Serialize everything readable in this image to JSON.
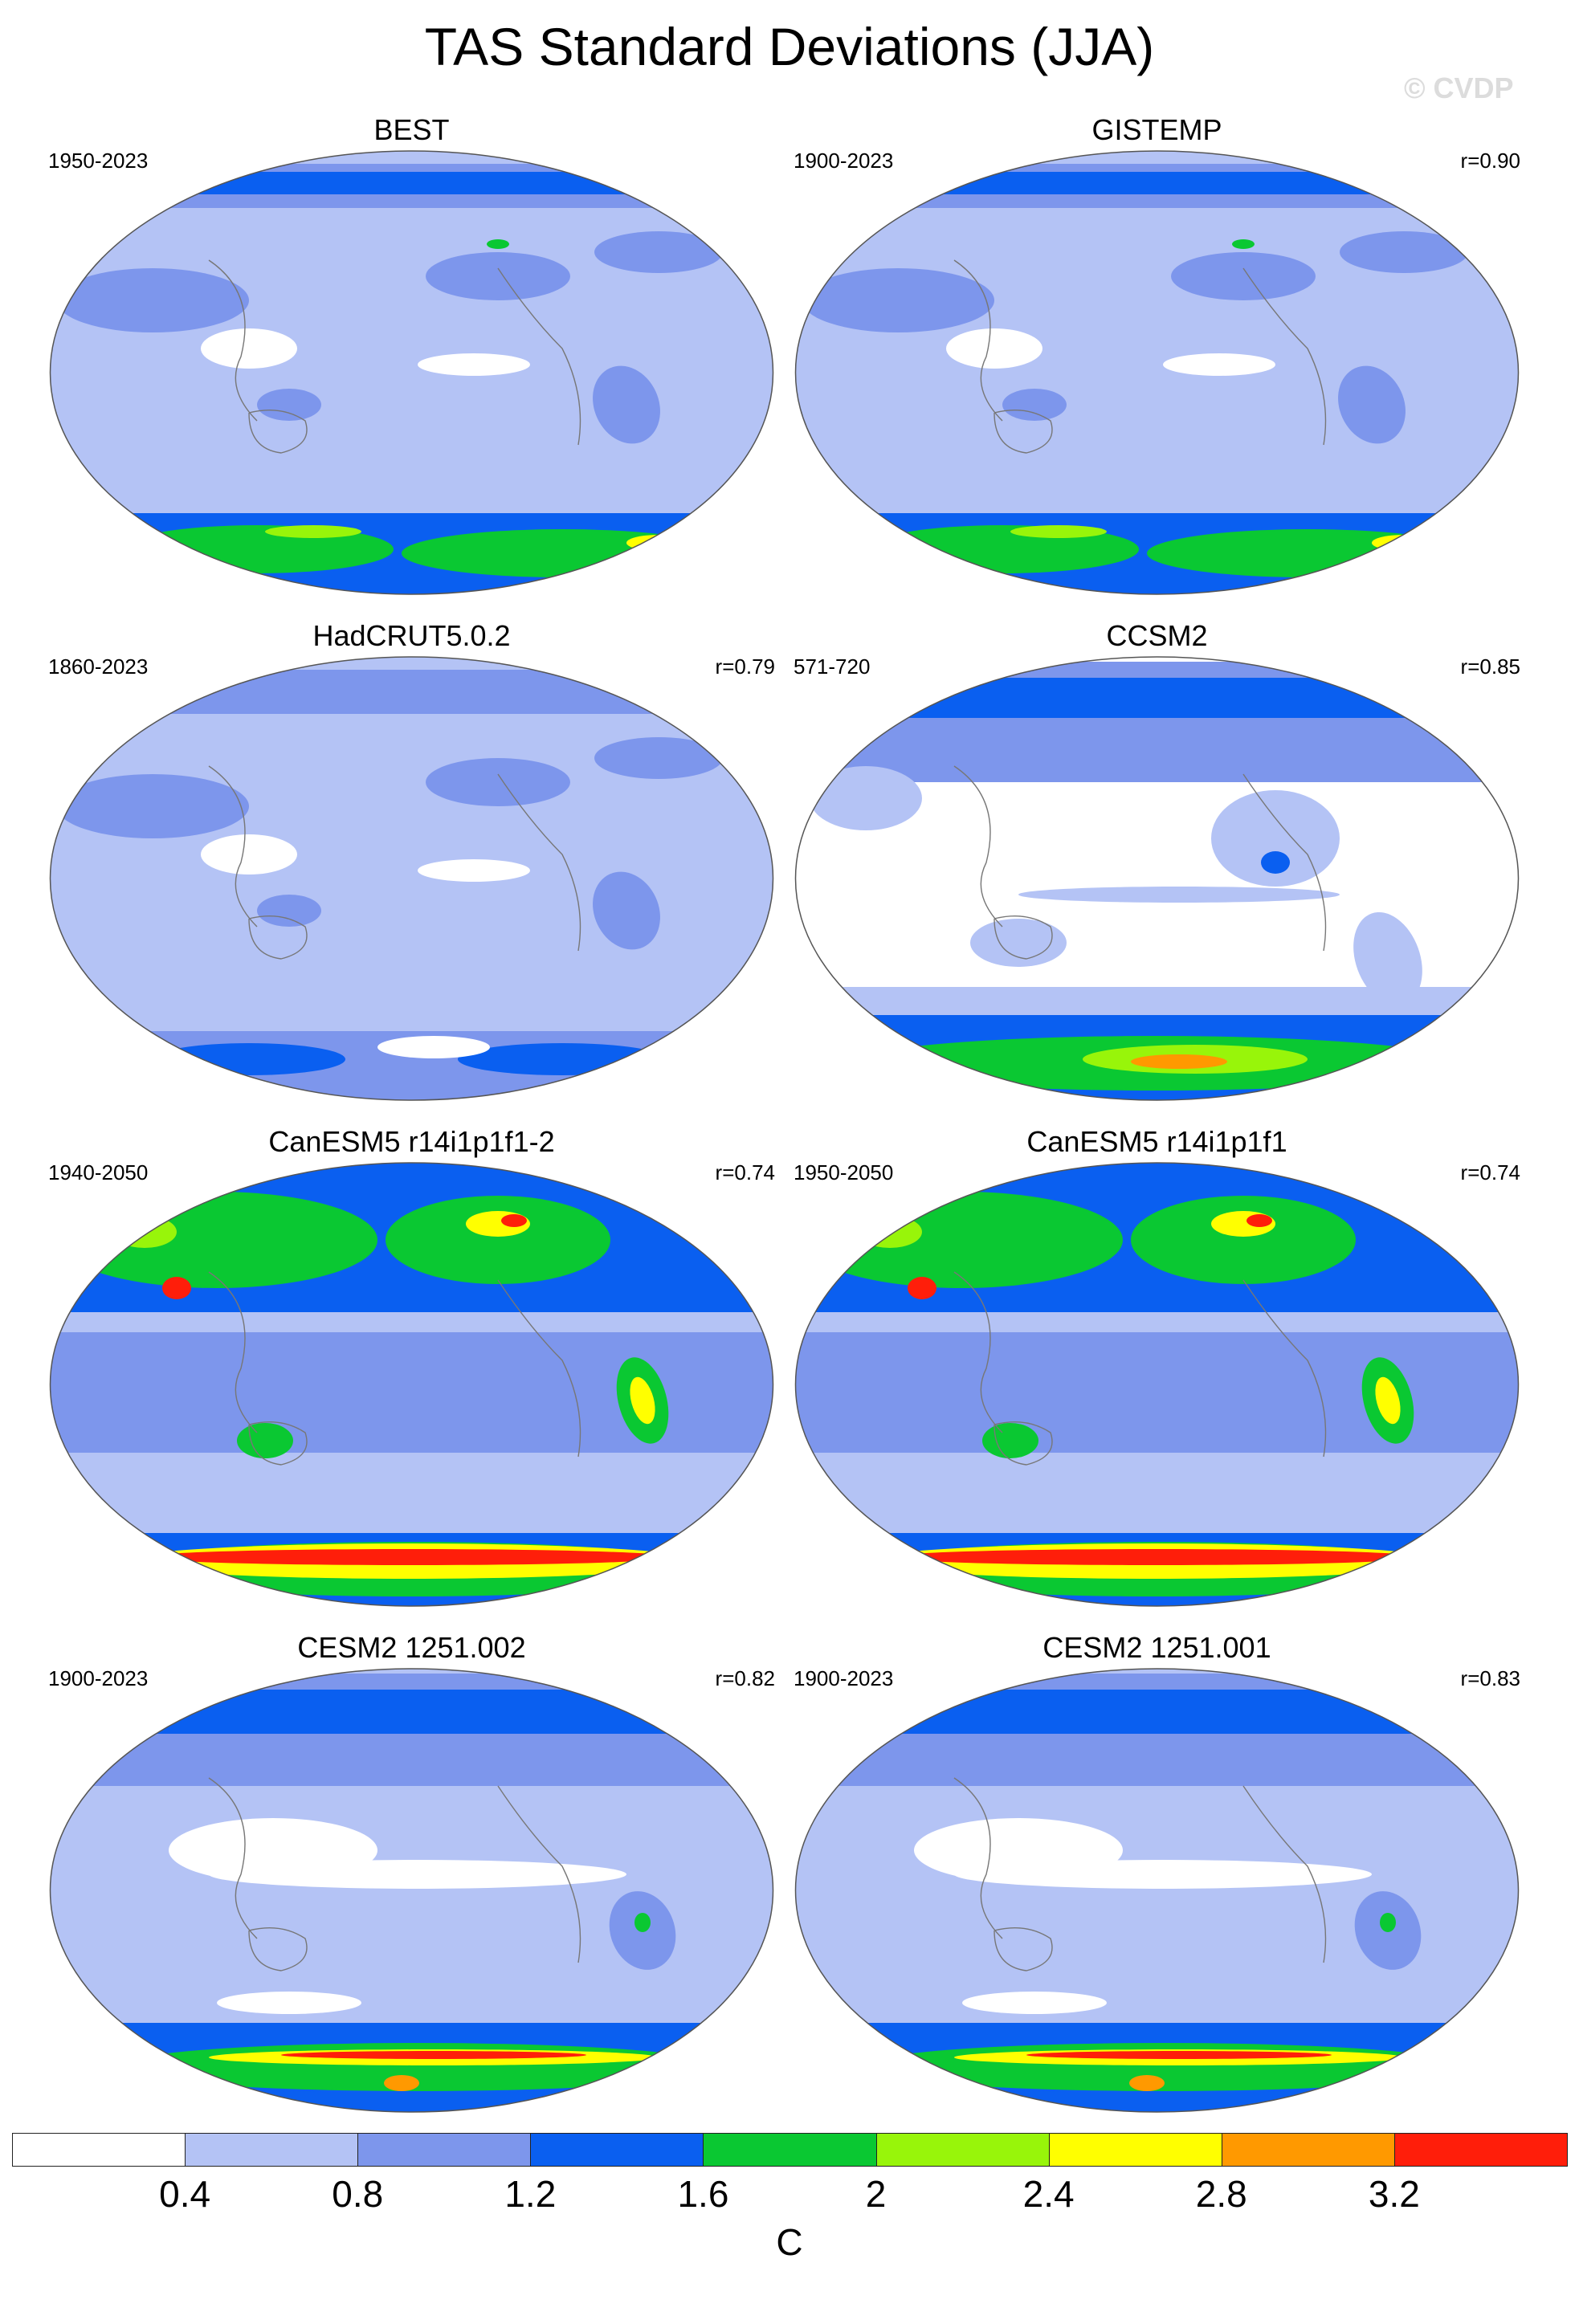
{
  "title": "TAS Standard Deviations (JJA)",
  "watermark": "© CVDP",
  "panels": [
    {
      "title": "BEST",
      "years": "1950-2023",
      "corr": "",
      "style": "obs"
    },
    {
      "title": "GISTEMP",
      "years": "1900-2023",
      "corr": "r=0.90",
      "style": "obs"
    },
    {
      "title": "HadCRUT5.0.2",
      "years": "1860-2023",
      "corr": "r=0.79",
      "style": "had"
    },
    {
      "title": "CCSM2",
      "years": "571-720",
      "corr": "r=0.85",
      "style": "ccsm"
    },
    {
      "title": "CanESM5 r14i1p1f1-2",
      "years": "1940-2050",
      "corr": "r=0.74",
      "style": "can"
    },
    {
      "title": "CanESM5 r14i1p1f1",
      "years": "1950-2050",
      "corr": "r=0.74",
      "style": "can"
    },
    {
      "title": "CESM2 1251.002",
      "years": "1900-2023",
      "corr": "r=0.82",
      "style": "cesm"
    },
    {
      "title": "CESM2 1251.001",
      "years": "1900-2023",
      "corr": "r=0.83",
      "style": "cesm"
    }
  ],
  "colorbar": {
    "colors": [
      "#ffffff",
      "#b4c3f5",
      "#7d96ec",
      "#0a5ff0",
      "#0ac832",
      "#98f50a",
      "#ffff00",
      "#ff9900",
      "#ff1e0a"
    ],
    "ticks": [
      "0.4",
      "0.8",
      "1.2",
      "1.6",
      "2",
      "2.4",
      "2.8",
      "3.2"
    ],
    "units": "C"
  }
}
